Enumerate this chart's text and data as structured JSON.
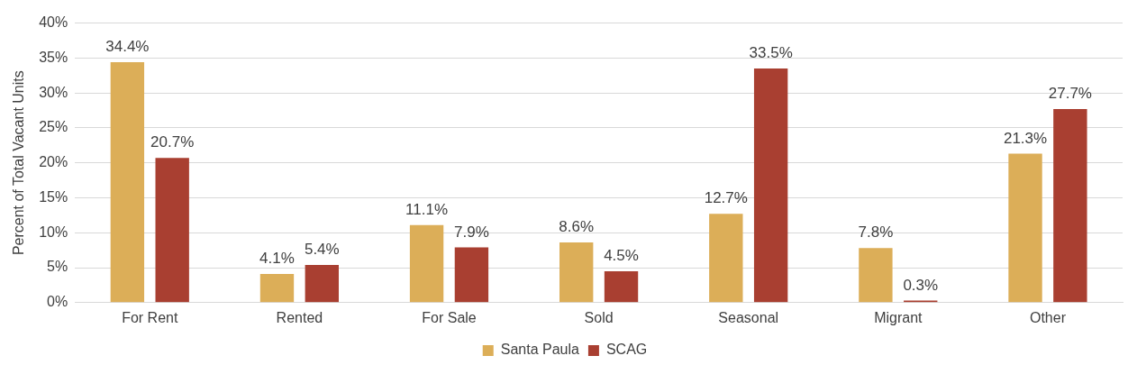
{
  "chart_data": {
    "type": "bar",
    "ylabel": "Percent of Total Vacant Units",
    "categories": [
      "For Rent",
      "Rented",
      "For Sale",
      "Sold",
      "Seasonal",
      "Migrant",
      "Other"
    ],
    "series": [
      {
        "name": "Santa Paula",
        "color": "#dcae58",
        "values": [
          34.4,
          4.1,
          11.1,
          8.6,
          12.7,
          7.8,
          21.3
        ],
        "value_labels": [
          "34.4%",
          "4.1%",
          "11.1%",
          "8.6%",
          "12.7%",
          "7.8%",
          "21.3%"
        ]
      },
      {
        "name": "SCAG",
        "color": "#a93f31",
        "values": [
          20.7,
          5.4,
          7.9,
          4.5,
          33.5,
          0.3,
          27.7
        ],
        "value_labels": [
          "20.7%",
          "5.4%",
          "7.9%",
          "4.5%",
          "33.5%",
          "0.3%",
          "27.7%"
        ]
      }
    ],
    "ylim": [
      0,
      40
    ],
    "yticks": [
      {
        "value": 0,
        "label": "0%"
      },
      {
        "value": 5,
        "label": "5%"
      },
      {
        "value": 10,
        "label": "10%"
      },
      {
        "value": 15,
        "label": "15%"
      },
      {
        "value": 20,
        "label": "20%"
      },
      {
        "value": 25,
        "label": "25%"
      },
      {
        "value": 30,
        "label": "30%"
      },
      {
        "value": 35,
        "label": "35%"
      },
      {
        "value": 40,
        "label": "40%"
      }
    ],
    "grid": "y",
    "legend": "bottom"
  }
}
